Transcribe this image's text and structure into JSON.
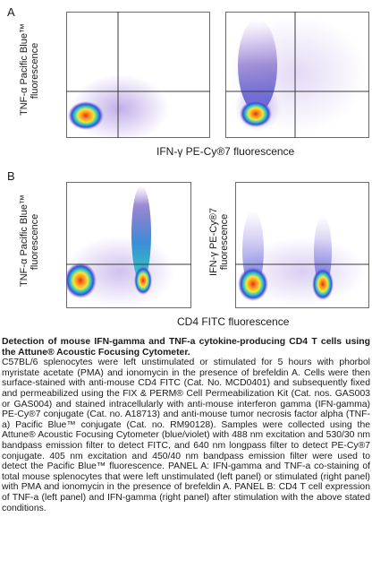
{
  "panels": {
    "a": {
      "letter": "A",
      "ylabel_line1": "TNF-α Pacific Blue™",
      "ylabel_line2": "fluorescence",
      "xlabel": "IFN-γ PE-Cy®7 fluorescence"
    },
    "b": {
      "letter": "B",
      "left_ylabel_line1": "TNF-α Pacific Blue™",
      "left_ylabel_line2": "fluorescence",
      "right_ylabel_line1": "IFN-γ PE-Cy®7",
      "right_ylabel_line2": "fluorescence",
      "xlabel": "CD4 FITC fluorescence"
    }
  },
  "caption": {
    "title": "Detection of mouse IFN-gamma and TNF-a cytokine-producing CD4 T cells using the Attune® Acoustic Focusing Cytometer.",
    "body": "C57BL/6 splenocytes were left unstimulated or stimulated for 5 hours with phorbol myristate acetate (PMA) and ionomycin in the presence of brefeldin A. Cells were then surface-stained with anti-mouse CD4 FITC (Cat. No. MCD0401) and subsequently fixed and permeabilized using the FIX & PERM® Cell Permeabilization Kit (Cat. nos. GAS003 or GAS004) and stained intracellularly with anti-mouse interferon gamma (IFN-gamma) PE-Cy®7 conjugate (Cat. no. A18713) and anti-mouse tumor necrosis factor alpha (TNF-a) Pacific Blue™ conjugate (Cat. no. RM90128). Samples were collected using the Attune® Acoustic Focusing Cytometer (blue/violet) with 488 nm excitation and 530/30 nm bandpass emission filter to detect FITC, and 640 nm longpass filter to detect PE-Cy®7 conjugate. 405 nm excitation and 450/40 nm bandpass emission filter were used to detect the Pacific Blue™ fluorescence. PANEL A: IFN-gamma and TNF-a co-staining of total mouse splenocytes that were left unstimulated (left panel) or stimulated (right panel) with PMA and ionomycin in the presence of brefeldin A. PANEL B: CD4 T cell expression of TNF-a (left panel) and IFN-gamma (right panel) after stimulation with the above stated conditions."
  },
  "colors": {
    "frame": "#6b6b6b",
    "gate": "#3a3a3a",
    "density_low": "#8e6bd8",
    "density_mid": "#2fd0c0",
    "density_high": "#ffd23a",
    "density_peak": "#e0301e"
  }
}
